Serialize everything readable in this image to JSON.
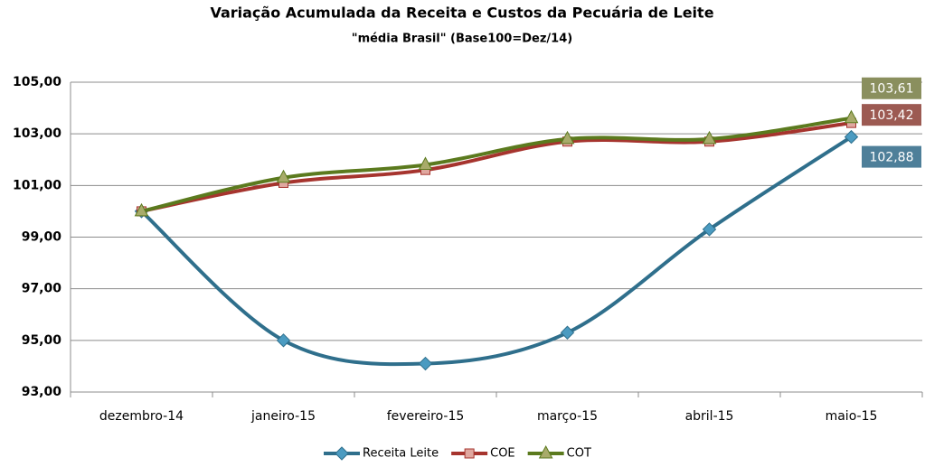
{
  "chart_data": {
    "type": "line",
    "title": "Variação Acumulada da Receita e Custos da Pecuária de Leite",
    "subtitle": "\"média Brasil\" (Base100=Dez/14)",
    "categories": [
      "dezembro-14",
      "janeiro-15",
      "fevereiro-15",
      "março-15",
      "abril-15",
      "maio-15"
    ],
    "series": [
      {
        "name": "Receita Leite",
        "color": "#2f6f8c",
        "marker": "diamond",
        "marker_color": "#4b9bc1",
        "label_color": "#4e7f99",
        "values": [
          100,
          95.0,
          94.1,
          95.3,
          99.3,
          102.88
        ],
        "value_labels": [
          null,
          null,
          null,
          null,
          null,
          "102,88"
        ]
      },
      {
        "name": "COE",
        "color": "#a6342e",
        "marker": "square",
        "marker_color": "#e0a8a0",
        "label_color": "#9c5a52",
        "values": [
          100,
          101.1,
          101.6,
          102.7,
          102.7,
          103.42
        ],
        "value_labels": [
          null,
          null,
          null,
          null,
          null,
          "103,42"
        ]
      },
      {
        "name": "COT",
        "color": "#5b7a1e",
        "marker": "triangle",
        "marker_color": "#a8ab6a",
        "label_color": "#8a8f5e",
        "values": [
          100,
          101.3,
          101.8,
          102.8,
          102.8,
          103.61
        ],
        "value_labels": [
          null,
          null,
          null,
          null,
          null,
          "103,61"
        ]
      }
    ],
    "ylim": [
      93,
      105
    ],
    "yticks": [
      {
        "value": 93,
        "label": "93,00"
      },
      {
        "value": 95,
        "label": "95,00"
      },
      {
        "value": 97,
        "label": "97,00"
      },
      {
        "value": 99,
        "label": "99,00"
      },
      {
        "value": 101,
        "label": "101,00"
      },
      {
        "value": 103,
        "label": "103,00"
      },
      {
        "value": 105,
        "label": "105,00"
      }
    ],
    "grid": true,
    "legend": "bottom"
  }
}
